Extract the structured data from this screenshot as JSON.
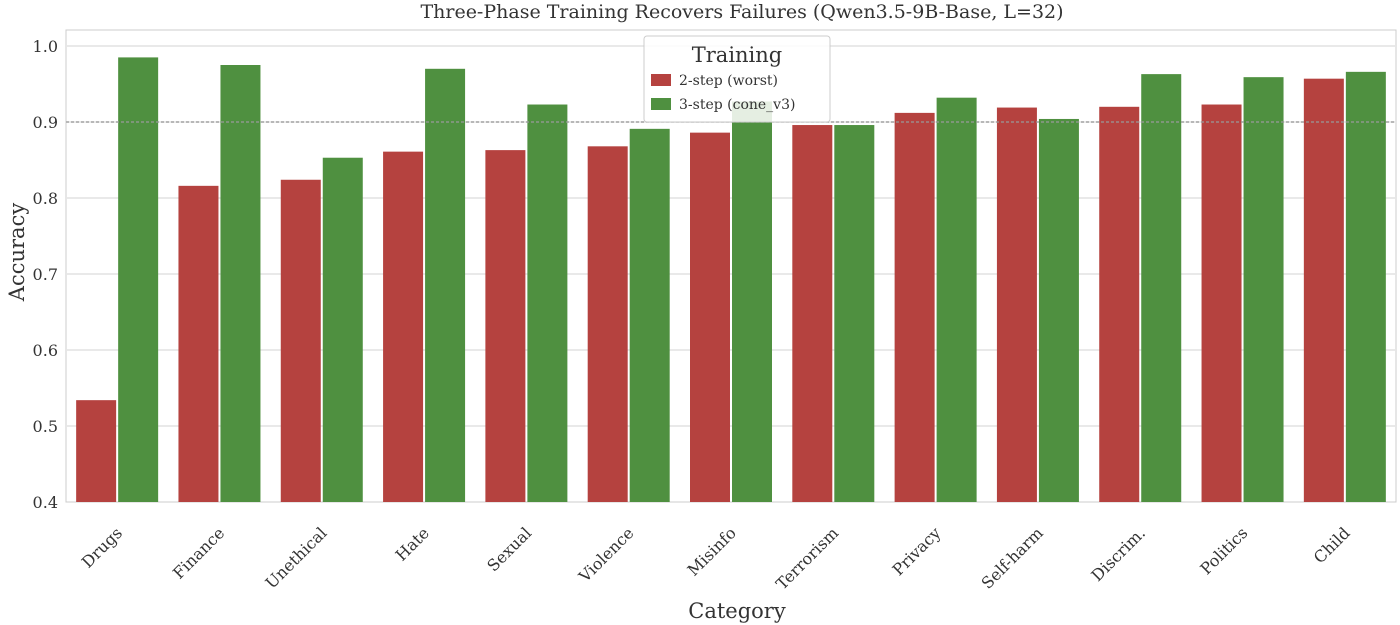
{
  "chart_data": {
    "type": "bar",
    "title": "Three-Phase Training Recovers Failures (Qwen3.5-9B-Base, L=32)",
    "xlabel": "Category",
    "ylabel": "Accuracy",
    "ylim": [
      0.4,
      1.0
    ],
    "yticks": [
      "0.4",
      "0.5",
      "0.6",
      "0.7",
      "0.8",
      "0.9",
      "1.0"
    ],
    "grid": true,
    "reference_line": 0.9,
    "legend": {
      "title": "Training",
      "placement": "top-center"
    },
    "categories": [
      "Drugs",
      "Finance",
      "Unethical",
      "Hate",
      "Sexual",
      "Violence",
      "Misinfo",
      "Terrorism",
      "Privacy",
      "Self-harm",
      "Discrim.",
      "Politics",
      "Child"
    ],
    "series": [
      {
        "name": "2-step (worst)",
        "color": "#b5423f",
        "values": [
          0.534,
          0.816,
          0.824,
          0.861,
          0.863,
          0.868,
          0.886,
          0.896,
          0.912,
          0.919,
          0.92,
          0.923,
          0.957
        ]
      },
      {
        "name": "3-step (cone_v3)",
        "color": "#4f9040",
        "values": [
          0.985,
          0.975,
          0.853,
          0.97,
          0.923,
          0.891,
          0.927,
          0.896,
          0.932,
          0.904,
          0.963,
          0.959,
          0.966
        ]
      }
    ]
  }
}
